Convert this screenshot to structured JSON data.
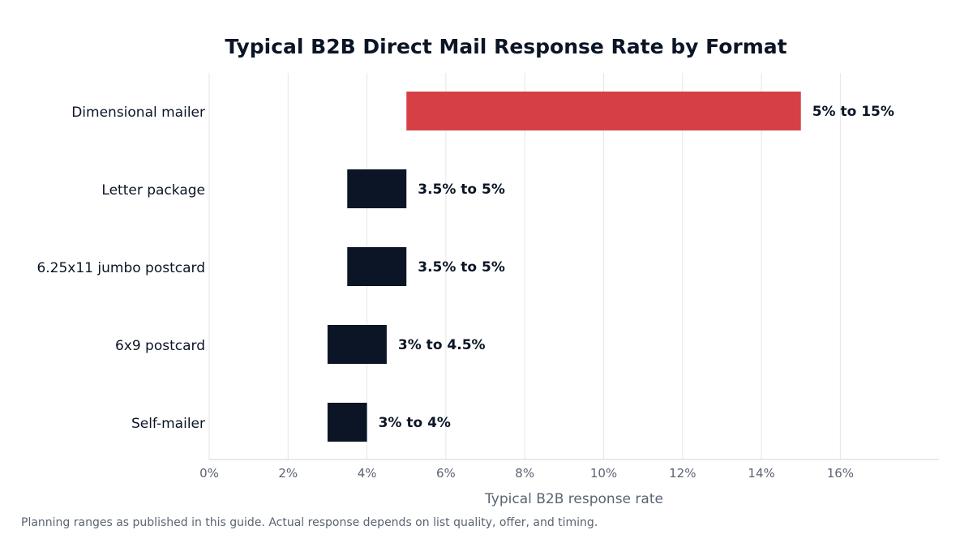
{
  "chart_data": {
    "type": "bar",
    "orientation": "horizontal",
    "title": "Typical B2B Direct Mail Response Rate by Format",
    "xlabel": "Typical B2B response rate",
    "ylabel": "",
    "xlim": [
      0,
      18.5
    ],
    "x_ticks": [
      0,
      2,
      4,
      6,
      8,
      10,
      12,
      14,
      16
    ],
    "x_tick_labels": [
      "0%",
      "2%",
      "4%",
      "6%",
      "8%",
      "10%",
      "12%",
      "14%",
      "16%"
    ],
    "grid": "vertical",
    "categories": [
      "Dimensional mailer",
      "Letter package",
      "6.25x11 jumbo postcard",
      "6x9 postcard",
      "Self-mailer"
    ],
    "ranges": [
      {
        "low": 5,
        "high": 15,
        "label": "5% to 15%",
        "color": "#d64045"
      },
      {
        "low": 3.5,
        "high": 5,
        "label": "3.5% to 5%",
        "color": "#0b1526"
      },
      {
        "low": 3.5,
        "high": 5,
        "label": "3.5% to 5%",
        "color": "#0b1526"
      },
      {
        "low": 3,
        "high": 4.5,
        "label": "3% to 4.5%",
        "color": "#0b1526"
      },
      {
        "low": 3,
        "high": 4,
        "label": "3% to 4%",
        "color": "#0b1526"
      }
    ]
  },
  "footnote": "Planning ranges as published in this guide. Actual response depends on list quality, offer, and timing."
}
